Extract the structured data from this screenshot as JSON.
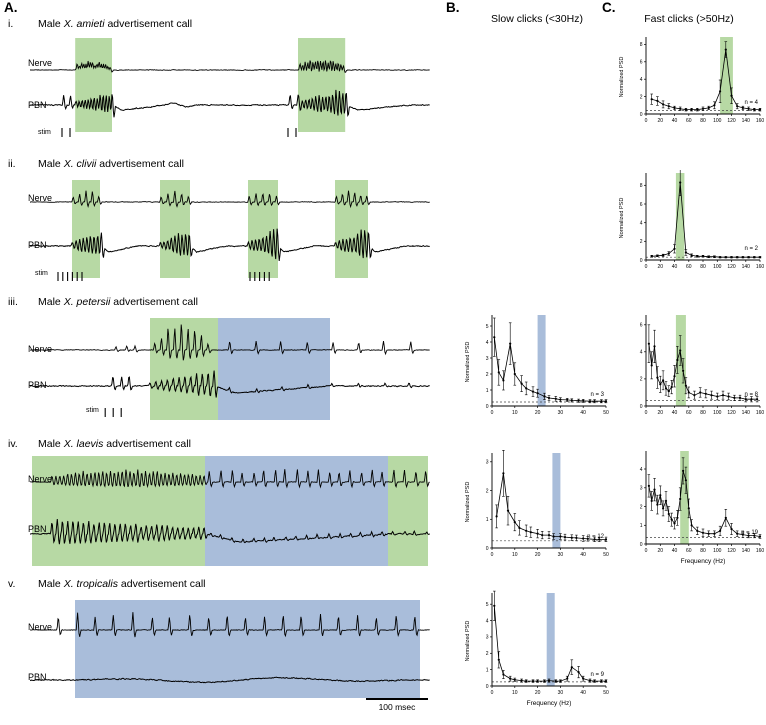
{
  "colors": {
    "green": "#b7d9a4",
    "blue": "#a9bdda"
  },
  "panel_a": {
    "label": "A.",
    "scale_bar": "100 msec",
    "rows": [
      {
        "numeral": "i.",
        "title_prefix": "Male ",
        "species": "X. amieti",
        "title_suffix": " advertisement call",
        "nerve_label": "Nerve",
        "pbn_label": "PBN",
        "stim_label": "stim",
        "highlights": [
          {
            "x0": 0.113,
            "x1": 0.205,
            "color": "green"
          },
          {
            "x0": 0.67,
            "x1": 0.788,
            "color": "green"
          }
        ],
        "stim_ticks": [
          0.08,
          0.1,
          0.645,
          0.665
        ],
        "nerve_segments": [
          {
            "kind": "burst",
            "x0": 0.118,
            "x1": 0.2,
            "n": 16,
            "amp": 13
          },
          {
            "kind": "burst",
            "x0": 0.675,
            "x1": 0.783,
            "n": 18,
            "amp": 15
          }
        ],
        "pbn_segments": [
          {
            "kind": "clicks",
            "x0": 0.082,
            "x1": 0.102,
            "n": 2,
            "amp": 10
          },
          {
            "kind": "burst",
            "x0": 0.115,
            "x1": 0.205,
            "n": 13,
            "amp": 15,
            "bi": true,
            "env": "rise"
          },
          {
            "kind": "dip",
            "x0": 0.206,
            "x1": 0.34,
            "amp": 5
          },
          {
            "kind": "wave",
            "x0": 0.33,
            "x1": 0.42,
            "n": 1,
            "amp": 2.5
          },
          {
            "kind": "clicks",
            "x0": 0.648,
            "x1": 0.668,
            "n": 2,
            "amp": 10
          },
          {
            "kind": "burst",
            "x0": 0.672,
            "x1": 0.79,
            "n": 15,
            "amp": 17,
            "bi": true,
            "env": "rise"
          },
          {
            "kind": "dip",
            "x0": 0.792,
            "x1": 0.95,
            "amp": 5
          }
        ]
      },
      {
        "numeral": "ii.",
        "title_prefix": "Male ",
        "species": "X. clivii",
        "title_suffix": " advertisement call",
        "nerve_label": "Nerve",
        "pbn_label": "PBN",
        "stim_label": "stim",
        "highlights": [
          {
            "x0": 0.105,
            "x1": 0.175,
            "color": "green"
          },
          {
            "x0": 0.325,
            "x1": 0.4,
            "color": "green"
          },
          {
            "x0": 0.545,
            "x1": 0.62,
            "color": "green"
          },
          {
            "x0": 0.7625,
            "x1": 0.845,
            "color": "green"
          }
        ],
        "stim_ticks": [
          0.07,
          0.082,
          0.094,
          0.106,
          0.118,
          0.13,
          0.55,
          0.562,
          0.574,
          0.586,
          0.598
        ],
        "nerve_segments": [
          {
            "kind": "burst",
            "x0": 0.108,
            "x1": 0.172,
            "n": 5,
            "amp": 11
          },
          {
            "kind": "burst",
            "x0": 0.328,
            "x1": 0.396,
            "n": 5,
            "amp": 11
          },
          {
            "kind": "burst",
            "x0": 0.548,
            "x1": 0.616,
            "n": 5,
            "amp": 11
          },
          {
            "kind": "burst",
            "x0": 0.766,
            "x1": 0.842,
            "n": 6,
            "amp": 11
          }
        ],
        "pbn_segments": [
          {
            "kind": "burst",
            "x0": 0.106,
            "x1": 0.178,
            "n": 9,
            "amp": 16,
            "bi": true,
            "env": "rise"
          },
          {
            "kind": "dip",
            "x0": 0.18,
            "x1": 0.27,
            "amp": 6
          },
          {
            "kind": "burst",
            "x0": 0.326,
            "x1": 0.398,
            "n": 9,
            "amp": 17,
            "bi": true,
            "env": "rise"
          },
          {
            "kind": "dip",
            "x0": 0.4,
            "x1": 0.49,
            "amp": 6
          },
          {
            "kind": "burst",
            "x0": 0.546,
            "x1": 0.618,
            "n": 9,
            "amp": 17,
            "bi": true,
            "env": "rise"
          },
          {
            "kind": "dip",
            "x0": 0.62,
            "x1": 0.71,
            "amp": 6
          },
          {
            "kind": "burst",
            "x0": 0.764,
            "x1": 0.846,
            "n": 10,
            "amp": 18,
            "bi": true,
            "env": "rise"
          },
          {
            "kind": "dip",
            "x0": 0.848,
            "x1": 0.94,
            "amp": 6
          }
        ]
      },
      {
        "numeral": "iii.",
        "title_prefix": "Male ",
        "species": "X. petersii",
        "title_suffix": " advertisement call",
        "nerve_label": "Nerve",
        "pbn_label": "PBN",
        "stim_label": "stim",
        "highlights": [
          {
            "x0": 0.3,
            "x1": 0.47,
            "color": "green"
          },
          {
            "x0": 0.47,
            "x1": 0.75,
            "color": "blue"
          }
        ],
        "stim_ticks": [
          0.188,
          0.208,
          0.228
        ],
        "nerve_segments": [
          {
            "kind": "clicks",
            "x0": 0.215,
            "x1": 0.265,
            "n": 3,
            "amp": 4
          },
          {
            "kind": "burst",
            "x0": 0.312,
            "x1": 0.445,
            "n": 9,
            "amp": 28,
            "env": "bell"
          },
          {
            "kind": "clicks",
            "x0": 0.5,
            "x1": 0.95,
            "n": 8,
            "amp": 9
          }
        ],
        "pbn_segments": [
          {
            "kind": "clicks",
            "x0": 0.205,
            "x1": 0.25,
            "n": 3,
            "amp": 12
          },
          {
            "kind": "burst",
            "x0": 0.3,
            "x1": 0.46,
            "n": 12,
            "amp": 16,
            "bi": true,
            "env": "rise"
          },
          {
            "kind": "dip",
            "x0": 0.462,
            "x1": 0.75,
            "amp": 7
          },
          {
            "kind": "clicks",
            "x0": 0.5,
            "x1": 0.95,
            "n": 8,
            "amp": 3
          }
        ]
      },
      {
        "numeral": "iv.",
        "title_prefix": "Male ",
        "species": "X. laevis",
        "title_suffix": " advertisement call",
        "nerve_label": "Nerve",
        "pbn_label": "PBN",
        "stim_label": "",
        "highlights": [
          {
            "x0": 0.005,
            "x1": 0.4375,
            "color": "green"
          },
          {
            "x0": 0.4375,
            "x1": 0.895,
            "color": "blue"
          },
          {
            "x0": 0.895,
            "x1": 0.995,
            "color": "green"
          }
        ],
        "stim_ticks": [],
        "nerve_segments": [
          {
            "kind": "burst",
            "x0": 0.055,
            "x1": 0.435,
            "n": 40,
            "amp": 12,
            "env": "flat"
          },
          {
            "kind": "clicks",
            "x0": 0.45,
            "x1": 0.99,
            "n": 21,
            "amp": 12
          }
        ],
        "pbn_segments": [
          {
            "kind": "burst",
            "x0": 0.055,
            "x1": 0.435,
            "n": 30,
            "amp": 15,
            "bi": true,
            "env": "decay"
          },
          {
            "kind": "dip",
            "x0": 0.44,
            "x1": 0.9,
            "amp": 8
          },
          {
            "kind": "clicks",
            "x0": 0.45,
            "x1": 0.99,
            "n": 21,
            "amp": 3
          }
        ]
      },
      {
        "numeral": "v.",
        "title_prefix": "Male ",
        "species": "X. tropicalis",
        "title_suffix": " advertisement call",
        "nerve_label": "Nerve",
        "pbn_label": "PBN",
        "stim_label": "",
        "highlights": [
          {
            "x0": 0.1125,
            "x1": 0.975,
            "color": "blue"
          }
        ],
        "stim_ticks": [],
        "nerve_segments": [
          {
            "kind": "clicks",
            "x0": 0.07,
            "x1": 0.96,
            "n": 20,
            "amp": 16
          }
        ],
        "pbn_segments": [
          {
            "kind": "wave",
            "x0": 0.1,
            "x1": 0.96,
            "n": 2,
            "amp": 2.5
          }
        ]
      }
    ]
  },
  "panel_b": {
    "label": "B.",
    "title": "Slow clicks (<30Hz)"
  },
  "panel_c": {
    "label": "C.",
    "title": "Fast clicks (>50Hz)"
  },
  "chart_data": [
    {
      "id": "psd-amieti-fast",
      "type": "line",
      "n_label": "n = 4",
      "xlim": [
        0,
        160
      ],
      "ylim": [
        0,
        8.5
      ],
      "xticks": [
        0,
        20,
        40,
        60,
        80,
        100,
        120,
        140,
        160
      ],
      "yticks": [
        0,
        2,
        4,
        6,
        8
      ],
      "ylabel": "Normalized PSD",
      "xlabel": "",
      "band": [
        104,
        122
      ],
      "band_color": "green",
      "dash_y": 0.4,
      "x": [
        8,
        16,
        24,
        32,
        40,
        48,
        56,
        64,
        72,
        80,
        88,
        96,
        104,
        112,
        120,
        128,
        136,
        144,
        152,
        160
      ],
      "y": [
        1.7,
        1.5,
        1.1,
        0.9,
        0.7,
        0.6,
        0.5,
        0.5,
        0.5,
        0.6,
        0.7,
        1.0,
        2.6,
        7.4,
        2.1,
        0.9,
        0.7,
        0.6,
        0.5,
        0.5
      ],
      "err": [
        0.6,
        0.5,
        0.4,
        0.3,
        0.2,
        0.2,
        0.15,
        0.15,
        0.15,
        0.2,
        0.2,
        0.4,
        1.3,
        0.9,
        0.9,
        0.3,
        0.2,
        0.2,
        0.15,
        0.15
      ]
    },
    {
      "id": "psd-clivii-fast",
      "type": "line",
      "n_label": "n = 2",
      "xlim": [
        0,
        160
      ],
      "ylim": [
        0,
        9
      ],
      "xticks": [
        0,
        20,
        40,
        60,
        80,
        100,
        120,
        140,
        160
      ],
      "yticks": [
        0,
        2,
        4,
        6,
        8
      ],
      "ylabel": "Normalized PSD",
      "xlabel": "",
      "band": [
        42,
        54
      ],
      "band_color": "green",
      "dash_y": 0.3,
      "x": [
        8,
        16,
        24,
        32,
        40,
        48,
        56,
        64,
        72,
        80,
        88,
        96,
        104,
        112,
        120,
        128,
        136,
        144,
        152,
        160
      ],
      "y": [
        0.4,
        0.45,
        0.5,
        0.7,
        1.2,
        8.3,
        0.8,
        0.5,
        0.4,
        0.4,
        0.35,
        0.35,
        0.3,
        0.3,
        0.3,
        0.3,
        0.3,
        0.3,
        0.3,
        0.3
      ],
      "err": [
        0.1,
        0.1,
        0.12,
        0.2,
        0.45,
        1.4,
        0.3,
        0.15,
        0.1,
        0.1,
        0.1,
        0.1,
        0.08,
        0.08,
        0.08,
        0.08,
        0.08,
        0.08,
        0.08,
        0.08
      ]
    },
    {
      "id": "psd-petersii-slow",
      "type": "line",
      "n_label": "n = 3",
      "xlim": [
        0,
        50
      ],
      "ylim": [
        0,
        5.5
      ],
      "xticks": [
        0,
        10,
        20,
        30,
        40,
        50
      ],
      "yticks": [
        0,
        1,
        2,
        3,
        4,
        5
      ],
      "ylabel": "Normalized PSD",
      "xlabel": "",
      "band": [
        20,
        23.5
      ],
      "band_color": "blue",
      "dash_y": 0.25,
      "x": [
        1,
        3,
        5,
        8,
        10,
        13,
        15,
        18,
        20,
        23,
        25,
        28,
        30,
        33,
        35,
        38,
        40,
        43,
        45,
        48,
        50
      ],
      "y": [
        4.3,
        2.1,
        1.6,
        3.9,
        2.0,
        1.4,
        1.1,
        0.9,
        0.8,
        0.6,
        0.5,
        0.45,
        0.4,
        0.38,
        0.35,
        0.33,
        0.32,
        0.3,
        0.3,
        0.3,
        0.3
      ],
      "err": [
        1.2,
        0.8,
        0.6,
        1.3,
        0.7,
        0.5,
        0.4,
        0.3,
        0.25,
        0.2,
        0.15,
        0.15,
        0.12,
        0.1,
        0.1,
        0.1,
        0.1,
        0.1,
        0.1,
        0.1,
        0.1
      ]
    },
    {
      "id": "psd-petersii-fast",
      "type": "line",
      "n_label": "n = 8",
      "xlim": [
        0,
        160
      ],
      "ylim": [
        0,
        6.5
      ],
      "xticks": [
        0,
        20,
        40,
        60,
        80,
        100,
        120,
        140,
        160
      ],
      "yticks": [
        0,
        2,
        4,
        6
      ],
      "ylabel": "",
      "xlabel": "",
      "band": [
        42,
        56
      ],
      "band_color": "green",
      "dash_y": 0.4,
      "x": [
        4,
        8,
        12,
        16,
        20,
        24,
        28,
        32,
        36,
        40,
        44,
        48,
        52,
        56,
        60,
        68,
        76,
        84,
        92,
        100,
        108,
        116,
        124,
        132,
        140,
        148,
        156
      ],
      "y": [
        4.6,
        3.0,
        4.4,
        2.1,
        1.6,
        1.9,
        1.3,
        1.1,
        1.4,
        2.2,
        3.4,
        4.1,
        2.6,
        1.5,
        1.0,
        0.8,
        1.0,
        0.9,
        0.8,
        0.7,
        0.8,
        0.7,
        0.6,
        0.6,
        0.5,
        0.5,
        0.5
      ],
      "err": [
        1.4,
        1.0,
        1.2,
        0.8,
        0.6,
        0.7,
        0.5,
        0.4,
        0.5,
        0.8,
        1.0,
        1.1,
        0.9,
        0.6,
        0.4,
        0.3,
        0.35,
        0.3,
        0.3,
        0.25,
        0.3,
        0.25,
        0.2,
        0.2,
        0.2,
        0.2,
        0.2
      ]
    },
    {
      "id": "psd-laevis-slow",
      "type": "line",
      "n_label": "n = 12",
      "xlim": [
        0,
        50
      ],
      "ylim": [
        0,
        3.2
      ],
      "xticks": [
        0,
        10,
        20,
        30,
        40,
        50
      ],
      "yticks": [
        0,
        1,
        2,
        3
      ],
      "ylabel": "Normalized PSD",
      "xlabel": "",
      "band": [
        26.5,
        30
      ],
      "band_color": "blue",
      "dash_y": 0.25,
      "x": [
        2,
        5,
        7,
        10,
        12,
        15,
        17,
        20,
        22,
        25,
        27,
        30,
        32,
        35,
        37,
        40,
        42,
        45,
        47,
        50
      ],
      "y": [
        1.1,
        2.6,
        1.3,
        0.9,
        0.7,
        0.6,
        0.55,
        0.5,
        0.45,
        0.45,
        0.4,
        0.4,
        0.38,
        0.36,
        0.35,
        0.33,
        0.32,
        0.3,
        0.3,
        0.3
      ],
      "err": [
        0.4,
        0.8,
        0.5,
        0.3,
        0.25,
        0.2,
        0.18,
        0.15,
        0.13,
        0.12,
        0.1,
        0.1,
        0.1,
        0.1,
        0.1,
        0.1,
        0.08,
        0.08,
        0.08,
        0.08
      ]
    },
    {
      "id": "psd-laevis-fast",
      "type": "line",
      "n_label": "n = 19",
      "xlim": [
        0,
        160
      ],
      "ylim": [
        0,
        4.8
      ],
      "xticks": [
        0,
        20,
        40,
        60,
        80,
        100,
        120,
        140,
        160
      ],
      "yticks": [
        0,
        1,
        2,
        3,
        4
      ],
      "ylabel": "",
      "xlabel": "Frequency (Hz)",
      "band": [
        48,
        60
      ],
      "band_color": "green",
      "dash_y": 0.35,
      "x": [
        4,
        8,
        12,
        16,
        20,
        24,
        28,
        32,
        36,
        40,
        44,
        48,
        52,
        56,
        60,
        64,
        72,
        80,
        88,
        96,
        104,
        112,
        120,
        128,
        136,
        144,
        152,
        160
      ],
      "y": [
        3.1,
        2.3,
        2.9,
        2.1,
        2.6,
        1.9,
        2.3,
        1.6,
        1.3,
        1.1,
        1.4,
        2.4,
        3.9,
        3.4,
        1.9,
        1.0,
        0.7,
        0.6,
        0.55,
        0.55,
        0.7,
        1.4,
        0.8,
        0.55,
        0.5,
        0.45,
        0.45,
        0.4
      ],
      "err": [
        0.6,
        0.5,
        0.6,
        0.5,
        0.5,
        0.4,
        0.5,
        0.4,
        0.35,
        0.3,
        0.4,
        0.6,
        0.7,
        0.7,
        0.5,
        0.3,
        0.2,
        0.2,
        0.15,
        0.15,
        0.25,
        0.45,
        0.3,
        0.15,
        0.15,
        0.12,
        0.12,
        0.1
      ]
    },
    {
      "id": "psd-tropicalis-slow",
      "type": "line",
      "n_label": "n = 9",
      "xlim": [
        0,
        50
      ],
      "ylim": [
        0,
        5.5
      ],
      "xticks": [
        0,
        10,
        20,
        30,
        40,
        50
      ],
      "yticks": [
        0,
        1,
        2,
        3,
        4,
        5
      ],
      "ylabel": "Normalized PSD",
      "xlabel": "Frequency (Hz)",
      "band": [
        24,
        27.5
      ],
      "band_color": "blue",
      "dash_y": 0.25,
      "x": [
        1,
        3,
        5,
        8,
        10,
        13,
        15,
        18,
        20,
        23,
        25,
        28,
        30,
        33,
        35,
        38,
        40,
        43,
        45,
        48,
        50
      ],
      "y": [
        4.9,
        1.6,
        0.7,
        0.45,
        0.38,
        0.33,
        0.3,
        0.3,
        0.3,
        0.3,
        0.33,
        0.3,
        0.3,
        0.45,
        1.15,
        0.85,
        0.45,
        0.33,
        0.3,
        0.3,
        0.3
      ],
      "err": [
        0.9,
        0.5,
        0.25,
        0.15,
        0.1,
        0.1,
        0.08,
        0.08,
        0.08,
        0.08,
        0.1,
        0.08,
        0.08,
        0.15,
        0.45,
        0.35,
        0.15,
        0.1,
        0.08,
        0.08,
        0.08
      ]
    }
  ]
}
